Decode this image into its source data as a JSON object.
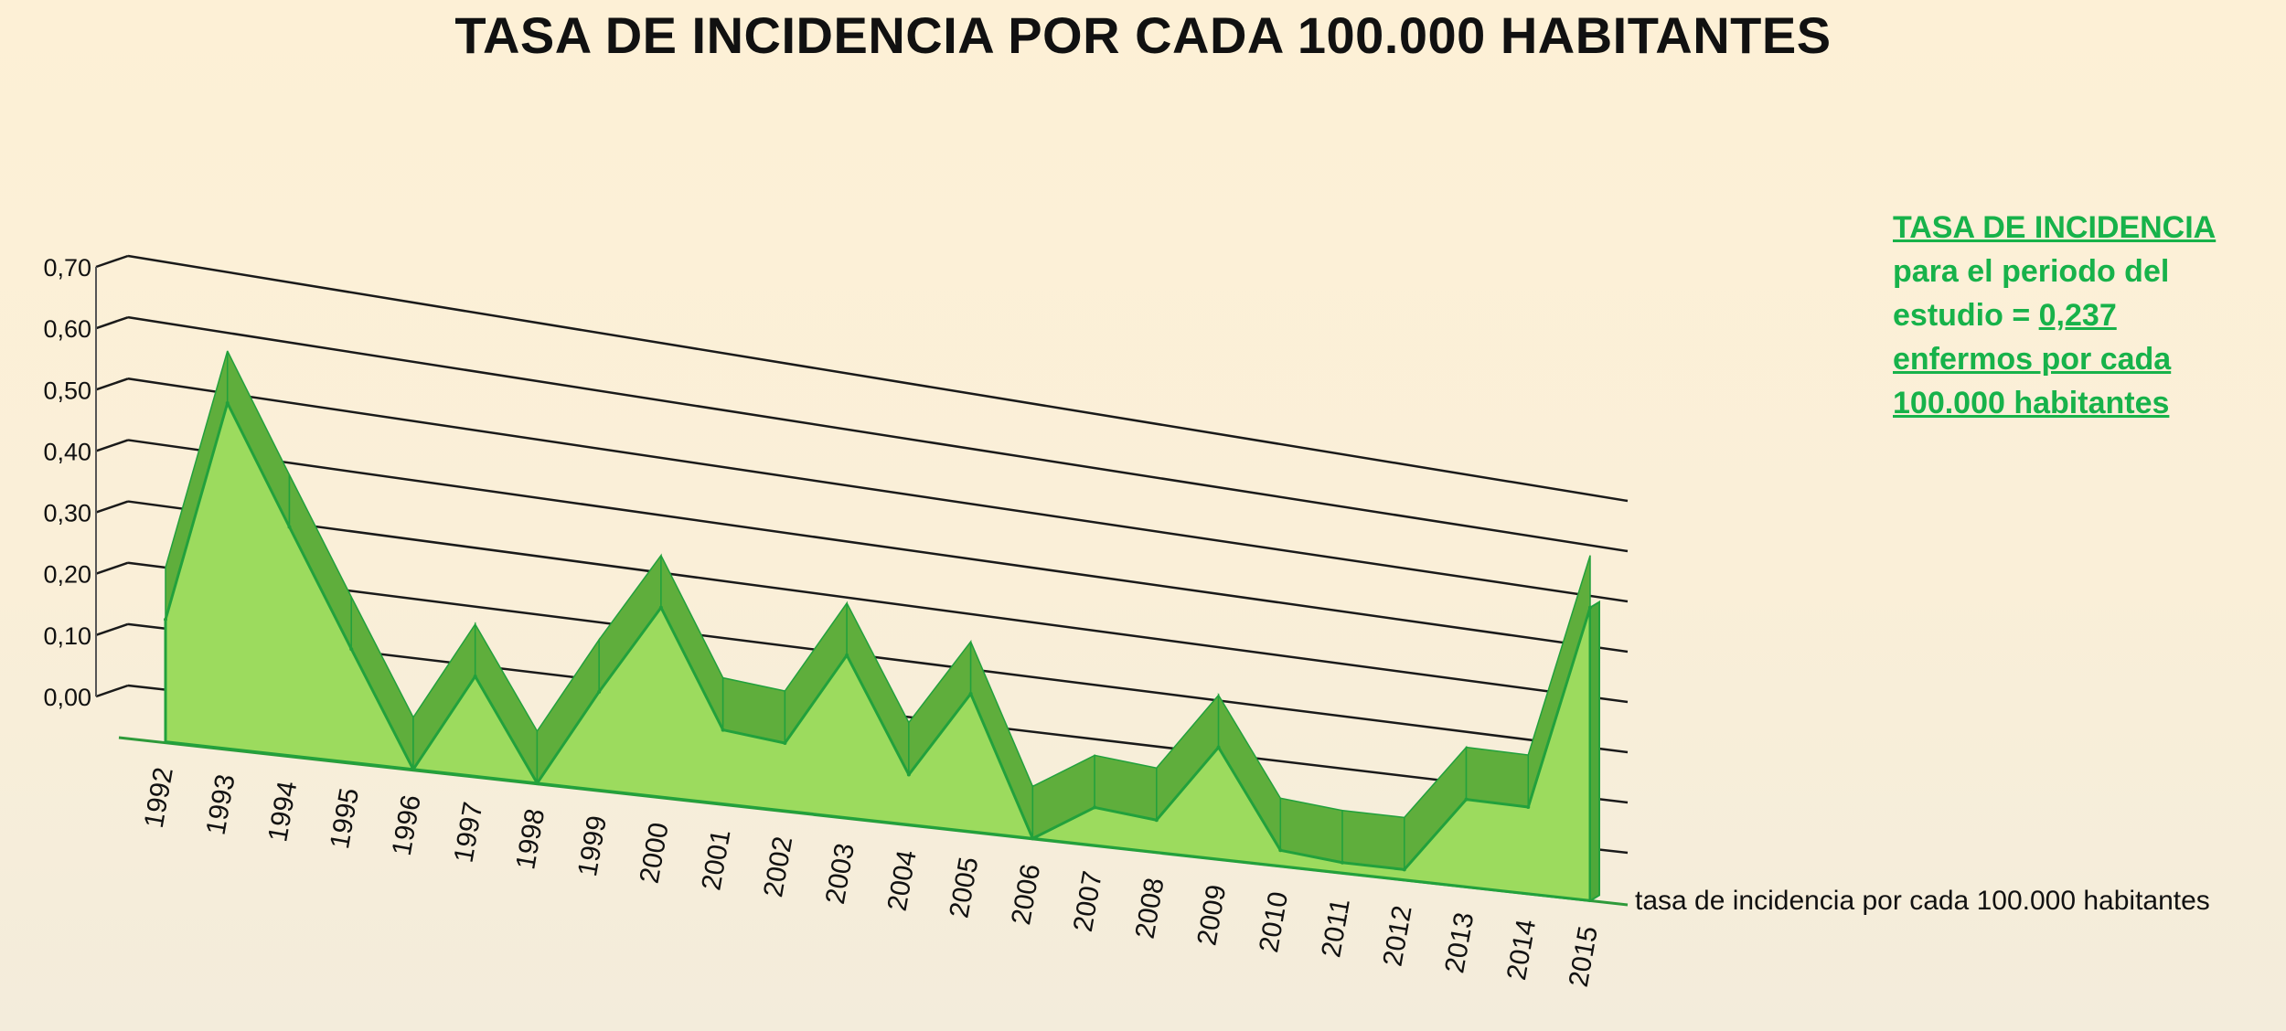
{
  "chart_data": {
    "type": "area",
    "title": "TASA DE INCIDENCIA POR CADA 100.000 HABITANTES",
    "categories": [
      "1992",
      "1993",
      "1994",
      "1995",
      "1996",
      "1997",
      "1998",
      "1999",
      "2000",
      "2001",
      "2002",
      "2003",
      "2004",
      "2005",
      "2006",
      "2007",
      "2008",
      "2009",
      "2010",
      "2011",
      "2012",
      "2013",
      "2014",
      "2015"
    ],
    "series": [
      {
        "name": "tasa de incidencia por cada 100.000 habitantes",
        "values": [
          0.2,
          0.57,
          0.38,
          0.19,
          0.0,
          0.17,
          0.0,
          0.17,
          0.33,
          0.13,
          0.12,
          0.29,
          0.09,
          0.25,
          0.0,
          0.07,
          0.06,
          0.21,
          0.03,
          0.02,
          0.02,
          0.17,
          0.17,
          0.58
        ]
      }
    ],
    "yticks": [
      "0,00",
      "0,10",
      "0,20",
      "0,30",
      "0,40",
      "0,50",
      "0,60",
      "0,70"
    ],
    "ylim": [
      0,
      0.7
    ],
    "grid": true,
    "colors": {
      "fill": "#9cdb5e",
      "edge": "#22a13c",
      "gridline": "#1a1a1a"
    }
  },
  "note": {
    "line1": "TASA DE INCIDENCIA",
    "line2": "para  el periodo del",
    "line3_prefix": "estudio =  ",
    "line3_value": "0,237",
    "line4": "enfermos por cada",
    "line5": "100.000  habitantes"
  }
}
